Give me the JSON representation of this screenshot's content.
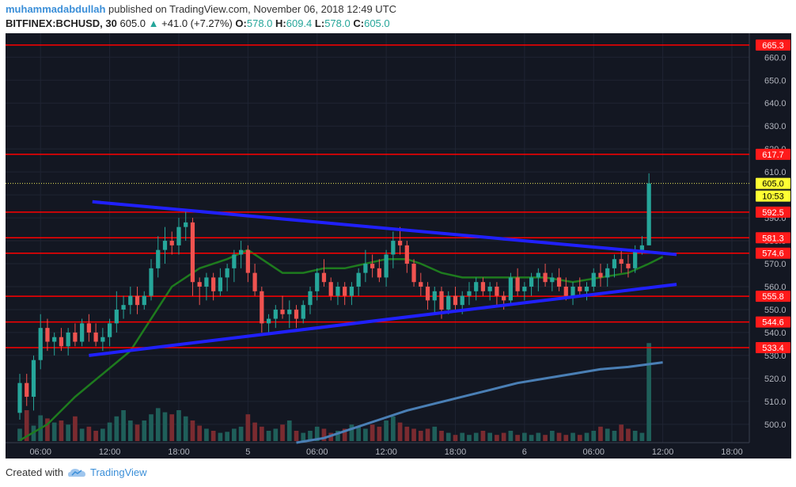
{
  "header": {
    "author": "muhammadabdullah",
    "published_text": "published on TradingView.com, November 06, 2018 12:49 UTC"
  },
  "symbol": {
    "name": "BITFINEX:BCHUSD, 30",
    "price": "605.0",
    "change_arrow": "▲",
    "change": "+41.0 (+7.27%)",
    "o_label": "O:",
    "o_value": "578.0",
    "h_label": "H:",
    "h_value": "609.4",
    "l_label": "L:",
    "l_value": "578.0",
    "c_label": "C:",
    "c_value": "605.0"
  },
  "footer": {
    "created_with": "Created with",
    "brand": "TradingView"
  },
  "colors": {
    "background": "#131722",
    "up": "#26a69a",
    "down": "#ef5350",
    "grid": "#1f2433",
    "hline": "#ff0000",
    "trendline": "#2020ff",
    "ma_short": "#1e7b1e",
    "ma_long": "#4a7fb5",
    "price_line": "#e8e85a"
  },
  "chart_data": {
    "type": "candlestick",
    "ylim": [
      492,
      667
    ],
    "xlim": [
      0,
      103
    ],
    "y_ticks": [
      500,
      510,
      520,
      530,
      540,
      550,
      560,
      570,
      580,
      590,
      600,
      610,
      620,
      630,
      640,
      650,
      660
    ],
    "x_ticks": [
      {
        "i": 3,
        "label": "06:00"
      },
      {
        "i": 13,
        "label": "12:00"
      },
      {
        "i": 23,
        "label": "18:00"
      },
      {
        "i": 33,
        "label": "5"
      },
      {
        "i": 43,
        "label": "06:00"
      },
      {
        "i": 53,
        "label": "12:00"
      },
      {
        "i": 63,
        "label": "18:00"
      },
      {
        "i": 73,
        "label": "6"
      },
      {
        "i": 83,
        "label": "06:00"
      },
      {
        "i": 93,
        "label": "12:00"
      },
      {
        "i": 103,
        "label": "18:00"
      }
    ],
    "horizontal_levels": [
      {
        "value": 665.3,
        "label": "665.3"
      },
      {
        "value": 617.7,
        "label": "617.7"
      },
      {
        "value": 592.5,
        "label": "592.5"
      },
      {
        "value": 581.3,
        "label": "581.3"
      },
      {
        "value": 574.6,
        "label": "574.6"
      },
      {
        "value": 555.8,
        "label": "555.8"
      },
      {
        "value": 544.6,
        "label": "544.6"
      },
      {
        "value": 533.4,
        "label": "533.4"
      }
    ],
    "last_price": {
      "value": 605.0,
      "label": "605.0",
      "countdown": "10:53"
    },
    "trendlines": [
      {
        "from": [
          10.5,
          597
        ],
        "to": [
          95,
          574
        ]
      },
      {
        "from": [
          10,
          530
        ],
        "to": [
          95,
          561
        ]
      }
    ],
    "candles": [
      [
        505,
        522,
        502,
        518
      ],
      [
        518,
        522,
        508,
        512
      ],
      [
        512,
        530,
        506,
        528
      ],
      [
        528,
        548,
        524,
        542
      ],
      [
        542,
        546,
        532,
        536
      ],
      [
        536,
        540,
        530,
        538
      ],
      [
        538,
        542,
        532,
        534
      ],
      [
        534,
        542,
        530,
        540
      ],
      [
        540,
        544,
        534,
        536
      ],
      [
        536,
        546,
        534,
        544
      ],
      [
        544,
        548,
        536,
        540
      ],
      [
        540,
        544,
        534,
        536
      ],
      [
        536,
        542,
        532,
        538
      ],
      [
        538,
        546,
        534,
        544
      ],
      [
        544,
        558,
        540,
        550
      ],
      [
        550,
        556,
        546,
        552
      ],
      [
        552,
        560,
        548,
        556
      ],
      [
        556,
        560,
        548,
        552
      ],
      [
        552,
        558,
        550,
        556
      ],
      [
        556,
        572,
        554,
        568
      ],
      [
        568,
        582,
        564,
        576
      ],
      [
        576,
        586,
        570,
        580
      ],
      [
        580,
        584,
        574,
        578
      ],
      [
        578,
        590,
        574,
        586
      ],
      [
        586,
        594,
        580,
        588
      ],
      [
        588,
        590,
        556,
        562
      ],
      [
        562,
        564,
        552,
        560
      ],
      [
        560,
        566,
        554,
        564
      ],
      [
        564,
        566,
        554,
        558
      ],
      [
        558,
        568,
        556,
        564
      ],
      [
        564,
        570,
        558,
        568
      ],
      [
        568,
        576,
        562,
        574
      ],
      [
        574,
        580,
        568,
        576
      ],
      [
        576,
        578,
        562,
        566
      ],
      [
        566,
        570,
        556,
        558
      ],
      [
        558,
        560,
        540,
        544
      ],
      [
        544,
        548,
        540,
        546
      ],
      [
        546,
        552,
        542,
        550
      ],
      [
        550,
        556,
        546,
        548
      ],
      [
        548,
        554,
        542,
        550
      ],
      [
        550,
        552,
        542,
        546
      ],
      [
        546,
        554,
        544,
        552
      ],
      [
        552,
        560,
        548,
        558
      ],
      [
        558,
        568,
        554,
        566
      ],
      [
        566,
        572,
        560,
        562
      ],
      [
        562,
        564,
        554,
        556
      ],
      [
        556,
        562,
        552,
        560
      ],
      [
        560,
        562,
        552,
        556
      ],
      [
        556,
        562,
        552,
        560
      ],
      [
        560,
        568,
        556,
        566
      ],
      [
        566,
        576,
        562,
        570
      ],
      [
        570,
        574,
        564,
        568
      ],
      [
        568,
        572,
        562,
        564
      ],
      [
        564,
        576,
        560,
        574
      ],
      [
        574,
        584,
        568,
        580
      ],
      [
        580,
        586,
        574,
        578
      ],
      [
        578,
        580,
        566,
        570
      ],
      [
        570,
        572,
        560,
        562
      ],
      [
        562,
        566,
        556,
        560
      ],
      [
        560,
        562,
        550,
        554
      ],
      [
        554,
        560,
        548,
        558
      ],
      [
        558,
        560,
        546,
        550
      ],
      [
        550,
        558,
        548,
        556
      ],
      [
        556,
        560,
        550,
        552
      ],
      [
        552,
        558,
        548,
        556
      ],
      [
        556,
        562,
        552,
        558
      ],
      [
        558,
        564,
        554,
        562
      ],
      [
        562,
        564,
        556,
        558
      ],
      [
        558,
        562,
        554,
        560
      ],
      [
        560,
        562,
        552,
        556
      ],
      [
        556,
        558,
        550,
        554
      ],
      [
        554,
        566,
        552,
        564
      ],
      [
        564,
        568,
        556,
        558
      ],
      [
        558,
        562,
        554,
        560
      ],
      [
        560,
        566,
        556,
        564
      ],
      [
        564,
        568,
        558,
        566
      ],
      [
        566,
        570,
        560,
        562
      ],
      [
        562,
        566,
        558,
        564
      ],
      [
        564,
        568,
        558,
        560
      ],
      [
        560,
        564,
        554,
        556
      ],
      [
        556,
        562,
        552,
        560
      ],
      [
        560,
        564,
        556,
        558
      ],
      [
        558,
        562,
        554,
        560
      ],
      [
        560,
        568,
        558,
        566
      ],
      [
        566,
        570,
        560,
        564
      ],
      [
        564,
        570,
        560,
        568
      ],
      [
        568,
        574,
        564,
        572
      ],
      [
        572,
        576,
        566,
        570
      ],
      [
        570,
        574,
        564,
        568
      ],
      [
        568,
        578,
        566,
        576
      ],
      [
        576,
        582,
        574,
        578
      ],
      [
        578,
        609.4,
        578,
        605
      ]
    ],
    "volume_heights_pct": [
      12,
      30,
      15,
      25,
      22,
      18,
      20,
      16,
      24,
      12,
      14,
      10,
      12,
      18,
      24,
      30,
      20,
      16,
      20,
      26,
      32,
      28,
      26,
      30,
      24,
      20,
      15,
      12,
      10,
      8,
      9,
      12,
      14,
      26,
      18,
      14,
      10,
      12,
      16,
      20,
      10,
      8,
      10,
      14,
      12,
      8,
      10,
      12,
      16,
      14,
      12,
      16,
      14,
      20,
      24,
      18,
      14,
      12,
      10,
      12,
      14,
      10,
      8,
      6,
      8,
      6,
      8,
      10,
      8,
      6,
      8,
      10,
      6,
      8,
      6,
      8,
      6,
      10,
      8,
      6,
      8,
      6,
      8,
      10,
      14,
      12,
      10,
      16,
      12,
      10,
      8,
      56
    ],
    "ma_short": [
      [
        0,
        493
      ],
      [
        4,
        500
      ],
      [
        8,
        512
      ],
      [
        12,
        522
      ],
      [
        16,
        532
      ],
      [
        19,
        546
      ],
      [
        22,
        560
      ],
      [
        26,
        568
      ],
      [
        30,
        572
      ],
      [
        33,
        576
      ],
      [
        35,
        572
      ],
      [
        38,
        566
      ],
      [
        41,
        566
      ],
      [
        44,
        568
      ],
      [
        47,
        568
      ],
      [
        50,
        570
      ],
      [
        53,
        572
      ],
      [
        56,
        572
      ],
      [
        58,
        570
      ],
      [
        61,
        566
      ],
      [
        64,
        564
      ],
      [
        68,
        564
      ],
      [
        72,
        564
      ],
      [
        76,
        564
      ],
      [
        80,
        562
      ],
      [
        84,
        564
      ],
      [
        88,
        566
      ],
      [
        91,
        570
      ],
      [
        93,
        573
      ]
    ],
    "ma_long": [
      [
        40,
        492
      ],
      [
        44,
        494
      ],
      [
        48,
        498
      ],
      [
        52,
        502
      ],
      [
        56,
        506
      ],
      [
        60,
        509
      ],
      [
        64,
        512
      ],
      [
        68,
        515
      ],
      [
        72,
        518
      ],
      [
        76,
        520
      ],
      [
        80,
        522
      ],
      [
        84,
        524
      ],
      [
        88,
        525
      ],
      [
        93,
        527
      ]
    ]
  }
}
